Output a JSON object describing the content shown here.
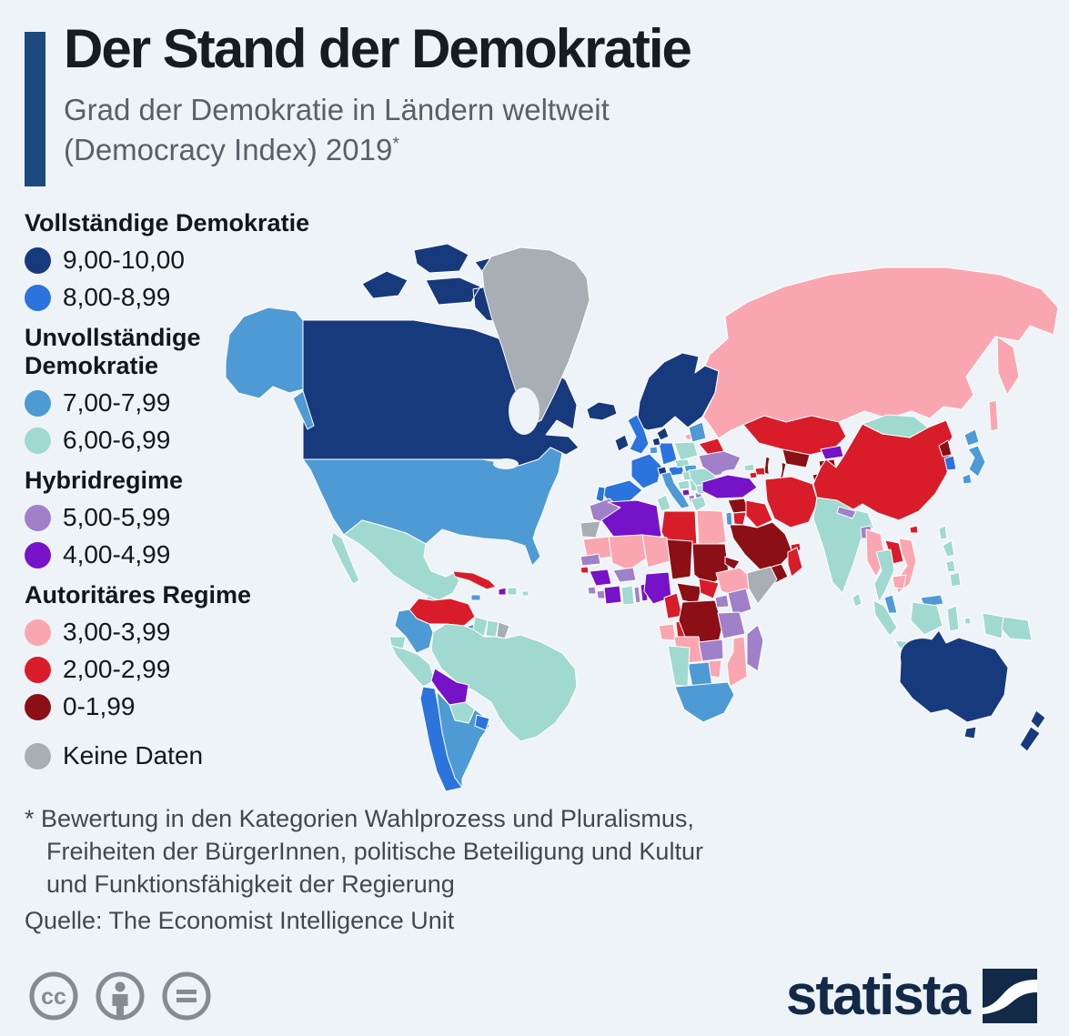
{
  "header": {
    "title": "Der Stand der Demokratie",
    "subtitle": "Grad der Demokratie in Ländern weltweit\n(Democracy Index) 2019",
    "footnote_marker": "*"
  },
  "legend": {
    "groups": [
      {
        "heading": "Vollständige Demokratie",
        "items": [
          {
            "label": "9,00-10,00",
            "color": "#173A7C"
          },
          {
            "label": "8,00-8,99",
            "color": "#2B73DD"
          }
        ]
      },
      {
        "heading": "Unvollständige\nDemokratie",
        "items": [
          {
            "label": "7,00-7,99",
            "color": "#4E9AD4"
          },
          {
            "label": "6,00-6,99",
            "color": "#A0D9CF"
          }
        ]
      },
      {
        "heading": "Hybridregime",
        "items": [
          {
            "label": "5,00-5,99",
            "color": "#A080C8"
          },
          {
            "label": "4,00-4,99",
            "color": "#7612C8"
          }
        ]
      },
      {
        "heading": "Autoritäres Regime",
        "items": [
          {
            "label": "3,00-3,99",
            "color": "#FAA6B0"
          },
          {
            "label": "2,00-2,99",
            "color": "#D91C2A"
          },
          {
            "label": "0-1,99",
            "color": "#8B0F15"
          }
        ]
      },
      {
        "heading": null,
        "items": [
          {
            "label": "Keine Daten",
            "color": "#A7AEB4"
          }
        ]
      }
    ]
  },
  "footnote": {
    "text": "* Bewertung in den Kategorien Wahlprozess und Pluralismus,\nFreiheiten der BürgerInnen, politische Beteiligung und Kultur\nund Funktionsfähigkeit der Regierung",
    "source": "Quelle: The Economist Intelligence Unit"
  },
  "branding": {
    "logo_text": "statista",
    "license_icons": [
      "cc-icon",
      "cc-by-icon",
      "cc-nd-icon"
    ]
  },
  "map": {
    "palette": {
      "navy": "#173A7C",
      "blue": "#2B73DD",
      "mblue": "#4E9AD4",
      "teal": "#A0D9CF",
      "lpurple": "#A080C8",
      "dpurple": "#7612C8",
      "pink": "#FAA6B0",
      "red": "#D91C2A",
      "dred": "#8B0F15",
      "gray": "#A7AEB4",
      "ocean": "#EEF3F7"
    },
    "regions": {
      "canada": "navy",
      "alaska": "mblue",
      "greenland": "gray",
      "iceland": "navy",
      "usa": "mblue",
      "mexico": "teal",
      "guatemala": "teal",
      "honduras": "lpurple",
      "el-salvador": "teal",
      "nicaragua": "pink",
      "costa-rica": "blue",
      "panama": "mblue",
      "cuba": "red",
      "jamaica": "mblue",
      "haiti": "dpurple",
      "dominican-republic": "teal",
      "puerto-rico": "teal",
      "venezuela": "red",
      "colombia": "mblue",
      "guyana": "teal",
      "suriname": "teal",
      "french-guiana": "gray",
      "brazil": "teal",
      "ecuador": "teal",
      "peru": "teal",
      "bolivia": "dpurple",
      "paraguay": "teal",
      "chile": "blue",
      "argentina": "mblue",
      "uruguay": "blue",
      "scandinavia": "navy",
      "denmark": "navy",
      "united-kingdom": "blue",
      "ireland": "navy",
      "baltics": "mblue",
      "belarus": "red",
      "poland": "teal",
      "germany": "blue",
      "netherlands": "navy",
      "belgium": "mblue",
      "france": "blue",
      "switzerland": "navy",
      "austria": "blue",
      "czechia": "teal",
      "slovakia": "mblue",
      "hungary": "teal",
      "spain": "blue",
      "portugal": "blue",
      "italy": "mblue",
      "croatia": "teal",
      "bosnia": "dpurple",
      "serbia": "teal",
      "albania": "lpurple",
      "north-macedonia": "lpurple",
      "greece": "teal",
      "bulgaria": "teal",
      "romania": "teal",
      "ukraine": "lpurple",
      "russia": "pink",
      "kazakhstan": "red",
      "uzbekistan": "dred",
      "turkmenistan": "dred",
      "kyrgyzstan": "dpurple",
      "tajikistan": "dred",
      "georgia": "teal",
      "azerbaijan": "red",
      "armenia": "red",
      "turkey": "dpurple",
      "syria": "dred",
      "israel": "mblue",
      "jordan": "red",
      "iraq": "red",
      "iran": "red",
      "afghanistan": "dred",
      "pakistan": "dpurple",
      "saudi-arabia": "dred",
      "uae": "red",
      "yemen": "dred",
      "oman": "red",
      "morocco": "lpurple",
      "western-sahara": "gray",
      "algeria": "dpurple",
      "tunisia": "teal",
      "libya": "red",
      "egypt": "pink",
      "mauritania": "pink",
      "mali": "pink",
      "niger": "pink",
      "chad": "dred",
      "sudan": "dred",
      "eritrea": "dred",
      "ethiopia": "pink",
      "somalia": "gray",
      "senegal": "lpurple",
      "guinea-bissau": "red",
      "guinea": "dpurple",
      "sierra-leone": "lpurple",
      "liberia": "lpurple",
      "ivory-coast": "dpurple",
      "burkina-faso": "lpurple",
      "ghana": "teal",
      "togo": "lpurple",
      "benin": "dpurple",
      "nigeria": "dpurple",
      "cameroon": "red",
      "central-african-republic": "dred",
      "south-sudan": "red",
      "gabon": "pink",
      "congo": "red",
      "dr-congo": "dred",
      "uganda": "lpurple",
      "kenya": "lpurple",
      "tanzania": "lpurple",
      "angola": "pink",
      "zambia": "lpurple",
      "mozambique": "pink",
      "zimbabwe": "pink",
      "botswana": "mblue",
      "namibia": "teal",
      "south-africa": "mblue",
      "madagascar": "lpurple",
      "india": "teal",
      "nepal": "lpurple",
      "bangladesh": "lpurple",
      "sri-lanka": "teal",
      "china": "red",
      "mongolia": "teal",
      "north-korea": "dred",
      "south-korea": "blue",
      "japan": "mblue",
      "taiwan": "teal",
      "myanmar": "pink",
      "laos": "red",
      "vietnam": "pink",
      "thailand": "teal",
      "cambodia": "pink",
      "malaysia": "mblue",
      "philippines": "teal",
      "indonesia": "teal",
      "timor-leste": "mblue",
      "papua-new-guinea": "teal",
      "australia": "navy",
      "new-zealand": "navy"
    }
  }
}
